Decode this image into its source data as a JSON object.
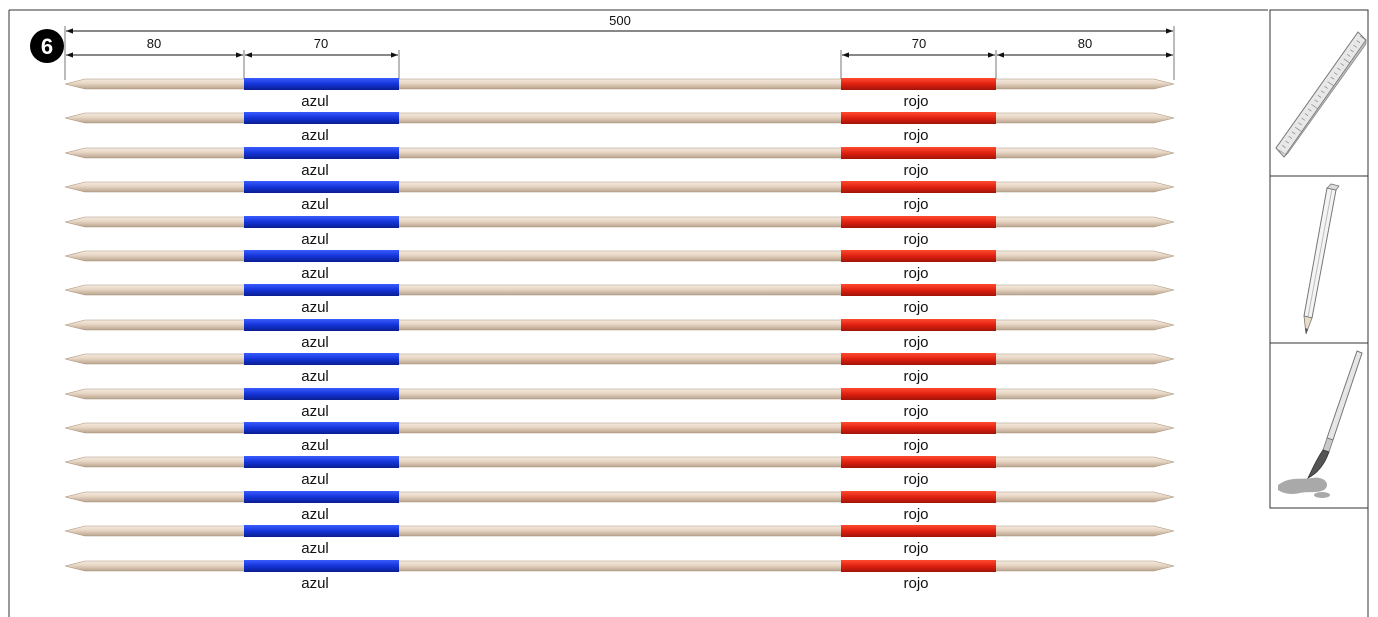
{
  "step": {
    "number": "6"
  },
  "dimensions": {
    "total": "500",
    "left_outer": "80",
    "left_band": "70",
    "right_band": "70",
    "right_outer": "80"
  },
  "bands": {
    "left": {
      "label": "azul",
      "color": "#1434d8"
    },
    "right": {
      "label": "rojo",
      "color": "#e02010"
    }
  },
  "stick": {
    "color": "#e8d9c8",
    "count": 15
  },
  "tools": [
    {
      "name": "ruler-icon"
    },
    {
      "name": "pencil-icon"
    },
    {
      "name": "paintbrush-icon"
    }
  ]
}
